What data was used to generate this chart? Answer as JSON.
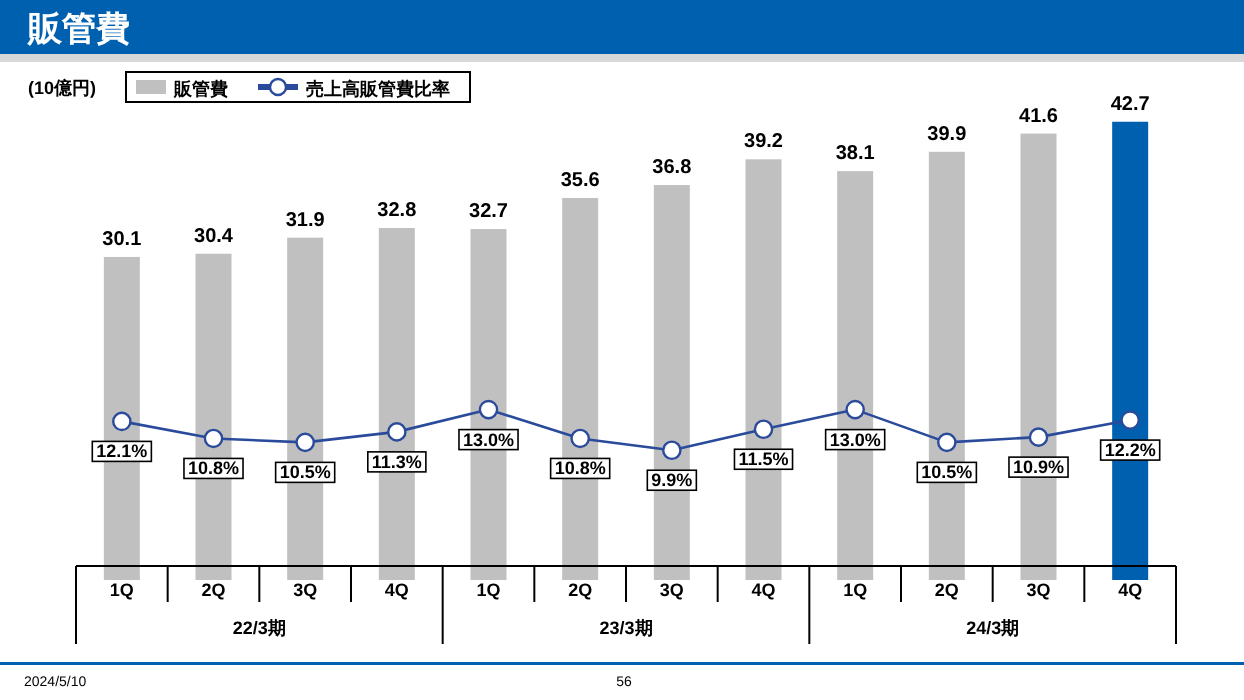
{
  "chart_data": {
    "type": "bar",
    "title": "販管費",
    "ylabel": "(10億円)",
    "categories": [
      "1Q",
      "2Q",
      "3Q",
      "4Q",
      "1Q",
      "2Q",
      "3Q",
      "4Q",
      "1Q",
      "2Q",
      "3Q",
      "4Q"
    ],
    "series": [
      {
        "name": "販管費",
        "color": "#c0c0c0",
        "colors": [
          "#c0c0c0",
          "#c0c0c0",
          "#c0c0c0",
          "#c0c0c0",
          "#c0c0c0",
          "#c0c0c0",
          "#c0c0c0",
          "#c0c0c0",
          "#c0c0c0",
          "#c0c0c0",
          "#c0c0c0",
          "#0060b0"
        ],
        "values": [
          30.1,
          30.4,
          31.9,
          32.8,
          32.7,
          35.6,
          36.8,
          39.2,
          38.1,
          39.9,
          41.6,
          42.7
        ]
      },
      {
        "name": "売上高販管費比率",
        "type": "line",
        "axis": "y2",
        "color": "#2a4b9b",
        "marker": "circle",
        "values": [
          12.1,
          10.8,
          10.5,
          11.3,
          13.0,
          10.8,
          9.9,
          11.5,
          13.0,
          10.5,
          10.9,
          12.2
        ],
        "value_labels": [
          "12.1%",
          "10.8%",
          "10.5%",
          "11.3%",
          "13.0%",
          "10.8%",
          "9.9%",
          "11.5%",
          "13.0%",
          "10.5%",
          "10.9%",
          "12.2%"
        ]
      }
    ],
    "data_labels": true,
    "tick_labels": "x",
    "legend": "top left",
    "annotations": [
      "22/3期",
      "23/3期",
      "24/3期",
      "2024/5/10",
      "56"
    ]
  }
}
